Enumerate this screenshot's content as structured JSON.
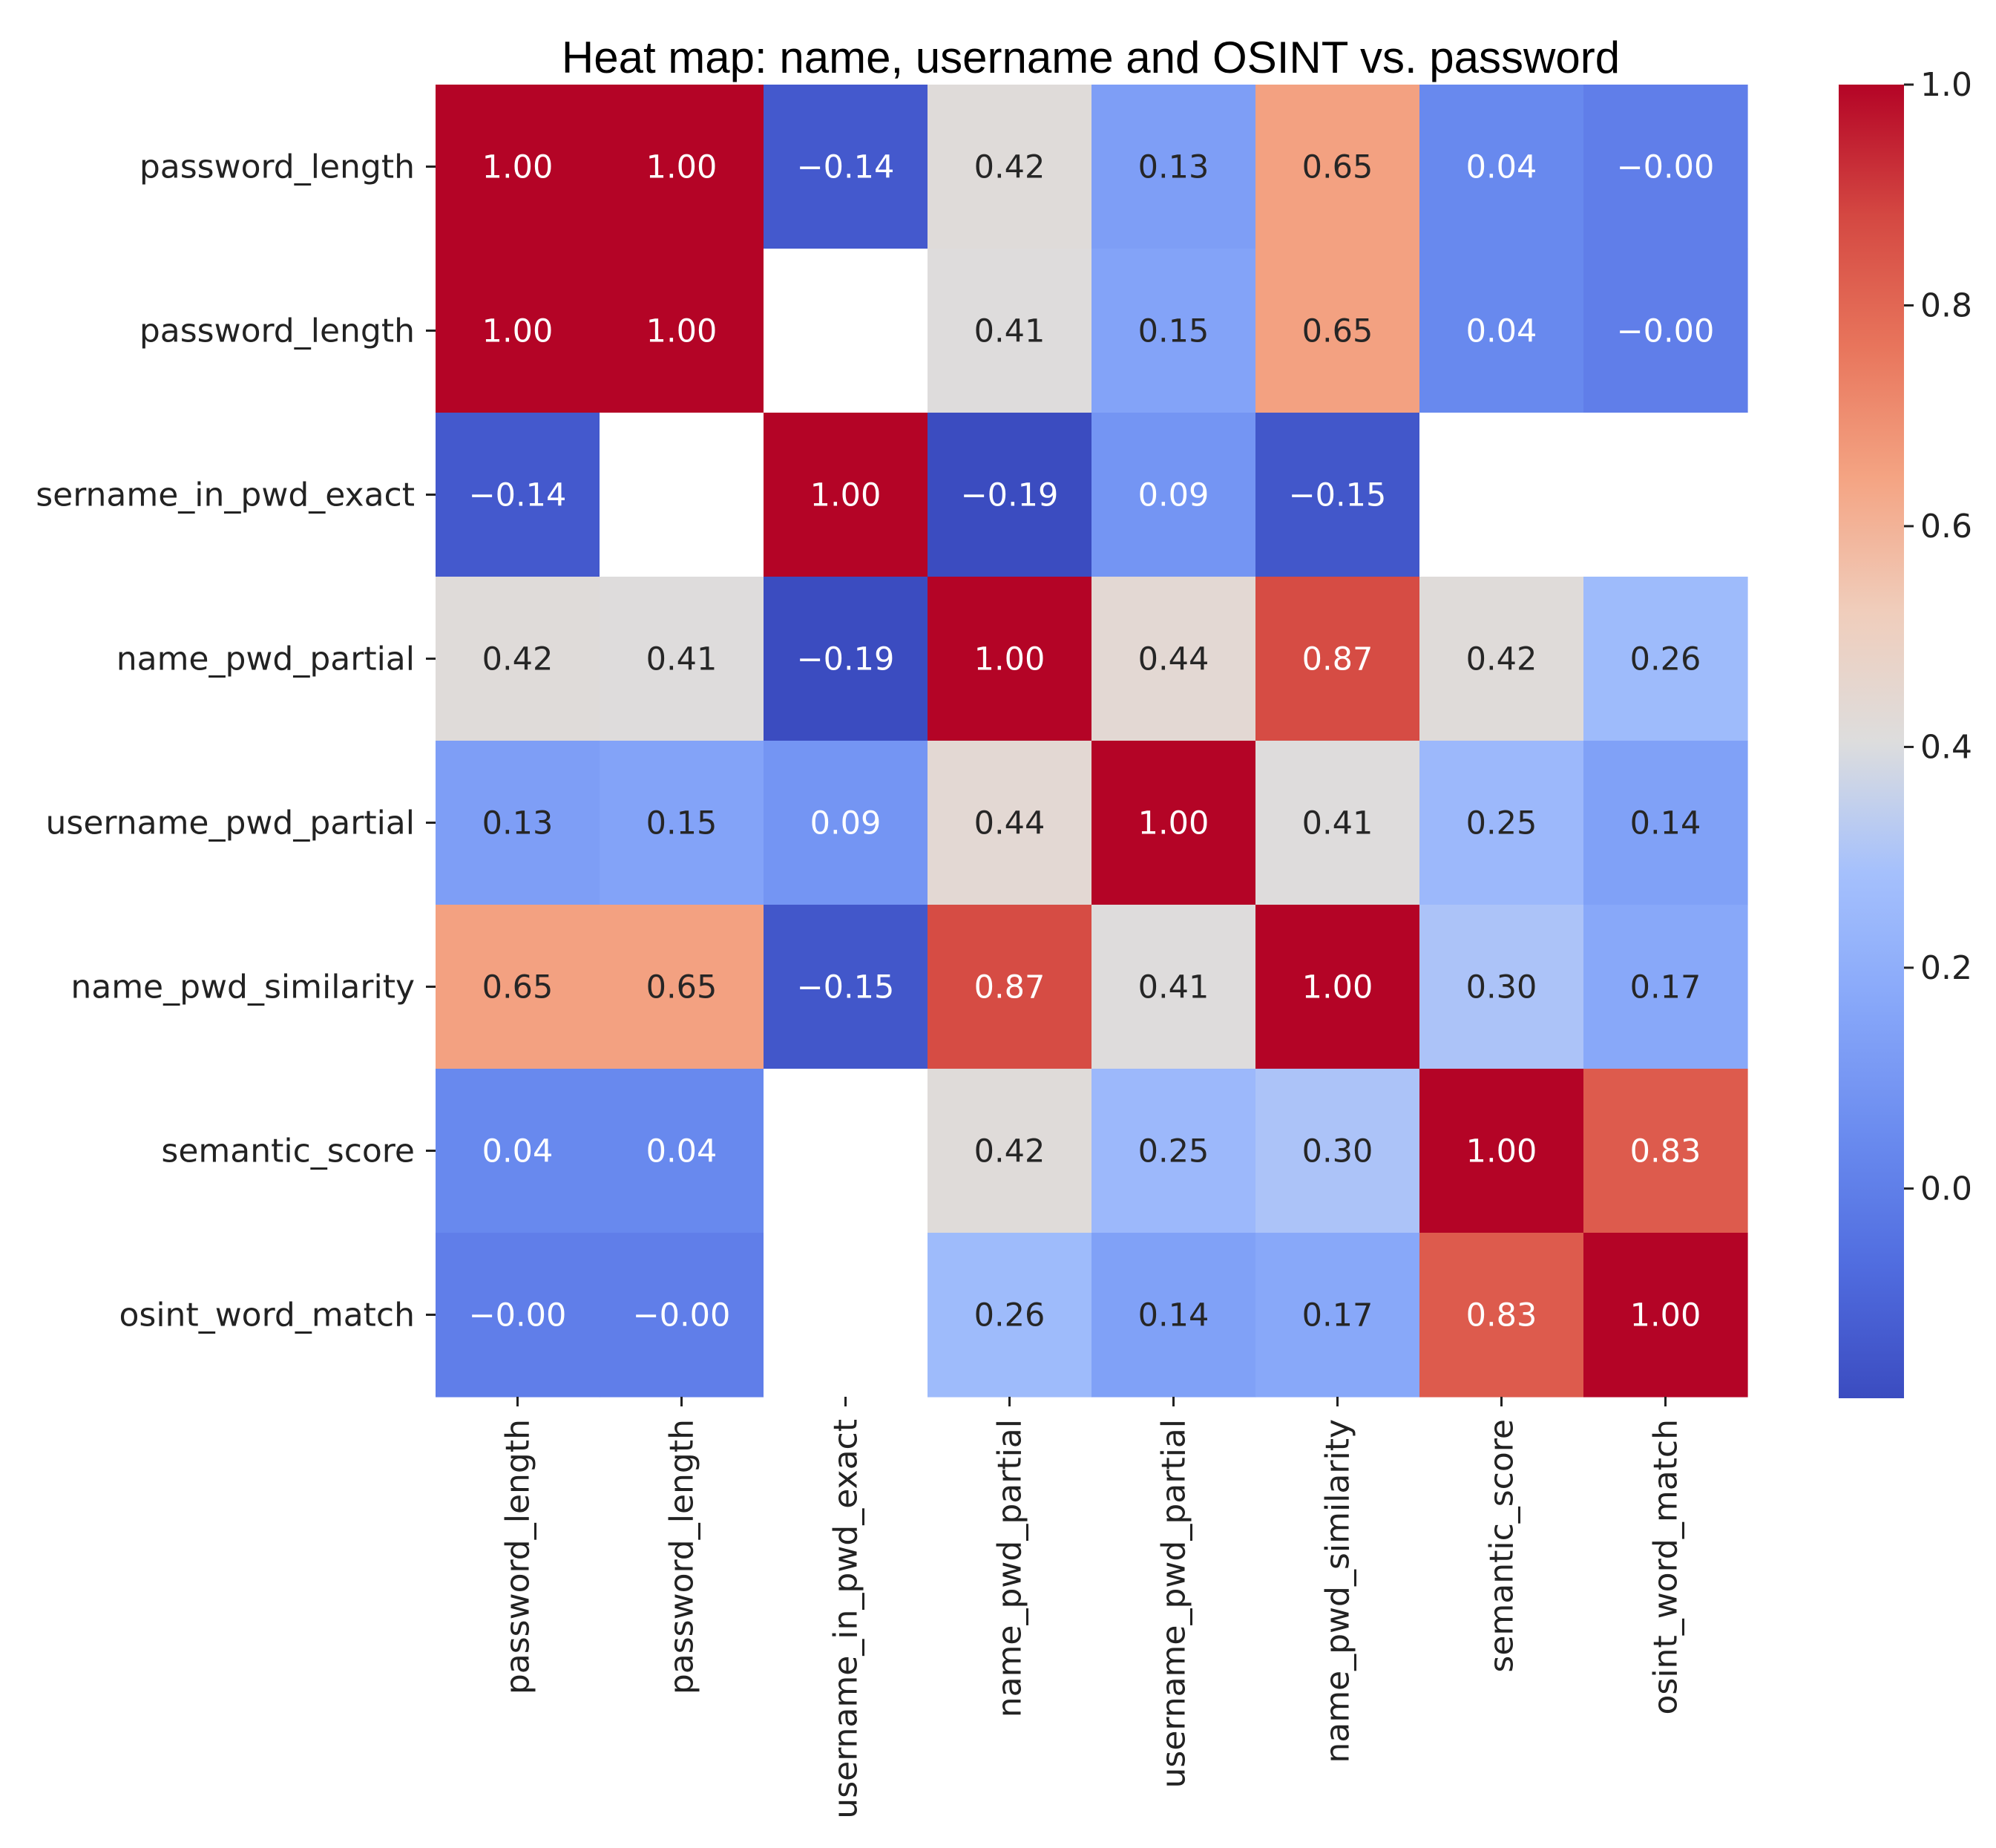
{
  "chart_data": {
    "type": "heatmap",
    "title": "Heat map: name, username and OSINT vs. password",
    "rows": [
      "password_length",
      "password_length",
      "sername_in_pwd_exact",
      "name_pwd_partial",
      "username_pwd_partial",
      "name_pwd_similarity",
      "semantic_score",
      "osint_word_match"
    ],
    "columns": [
      "password_length",
      "password_length",
      "username_in_pwd_exact",
      "name_pwd_partial",
      "username_pwd_partial",
      "name_pwd_similarity",
      "semantic_score",
      "osint_word_match"
    ],
    "values": [
      [
        1.0,
        1.0,
        -0.14,
        0.42,
        0.13,
        0.65,
        0.04,
        -0.0
      ],
      [
        1.0,
        1.0,
        null,
        0.41,
        0.15,
        0.65,
        0.04,
        -0.0
      ],
      [
        -0.14,
        null,
        1.0,
        -0.19,
        0.09,
        -0.15,
        null,
        null
      ],
      [
        0.42,
        0.41,
        -0.19,
        1.0,
        0.44,
        0.87,
        0.42,
        0.26
      ],
      [
        0.13,
        0.15,
        0.09,
        0.44,
        1.0,
        0.41,
        0.25,
        0.14
      ],
      [
        0.65,
        0.65,
        -0.15,
        0.87,
        0.41,
        1.0,
        0.3,
        0.17
      ],
      [
        0.04,
        0.04,
        null,
        0.42,
        0.25,
        0.3,
        1.0,
        0.83
      ],
      [
        -0.0,
        -0.0,
        null,
        0.26,
        0.14,
        0.17,
        0.83,
        1.0
      ]
    ],
    "labels": [
      [
        "1.00",
        "1.00",
        "−0.14",
        "0.42",
        "0.13",
        "0.65",
        "0.04",
        "−0.00"
      ],
      [
        "1.00",
        "1.00",
        "",
        "0.41",
        "0.15",
        "0.65",
        "0.04",
        "−0.00"
      ],
      [
        "−0.14",
        "",
        "1.00",
        "−0.19",
        "0.09",
        "−0.15",
        "",
        ""
      ],
      [
        "0.42",
        "0.41",
        "−0.19",
        "1.00",
        "0.44",
        "0.87",
        "0.42",
        "0.26"
      ],
      [
        "0.13",
        "0.15",
        "0.09",
        "0.44",
        "1.00",
        "0.41",
        "0.25",
        "0.14"
      ],
      [
        "0.65",
        "0.65",
        "−0.15",
        "0.87",
        "0.41",
        "1.00",
        "0.30",
        "0.17"
      ],
      [
        "0.04",
        "0.04",
        "",
        "0.42",
        "0.25",
        "0.30",
        "1.00",
        "0.83"
      ],
      [
        "−0.00",
        "−0.00",
        "",
        "0.26",
        "0.14",
        "0.17",
        "0.83",
        "1.00"
      ]
    ],
    "colormap": "coolwarm",
    "vmin": -0.19,
    "vmax": 1.0,
    "colorbar_ticks": [
      1.0,
      0.8,
      0.6,
      0.4,
      0.2,
      0.0
    ],
    "colorbar_tick_labels": [
      "1.0",
      "0.8",
      "0.6",
      "0.4",
      "0.2",
      "0.0"
    ],
    "missing_color": "#ffffff",
    "dark_text_color": "#262626",
    "light_text_color": "#ffffff"
  }
}
